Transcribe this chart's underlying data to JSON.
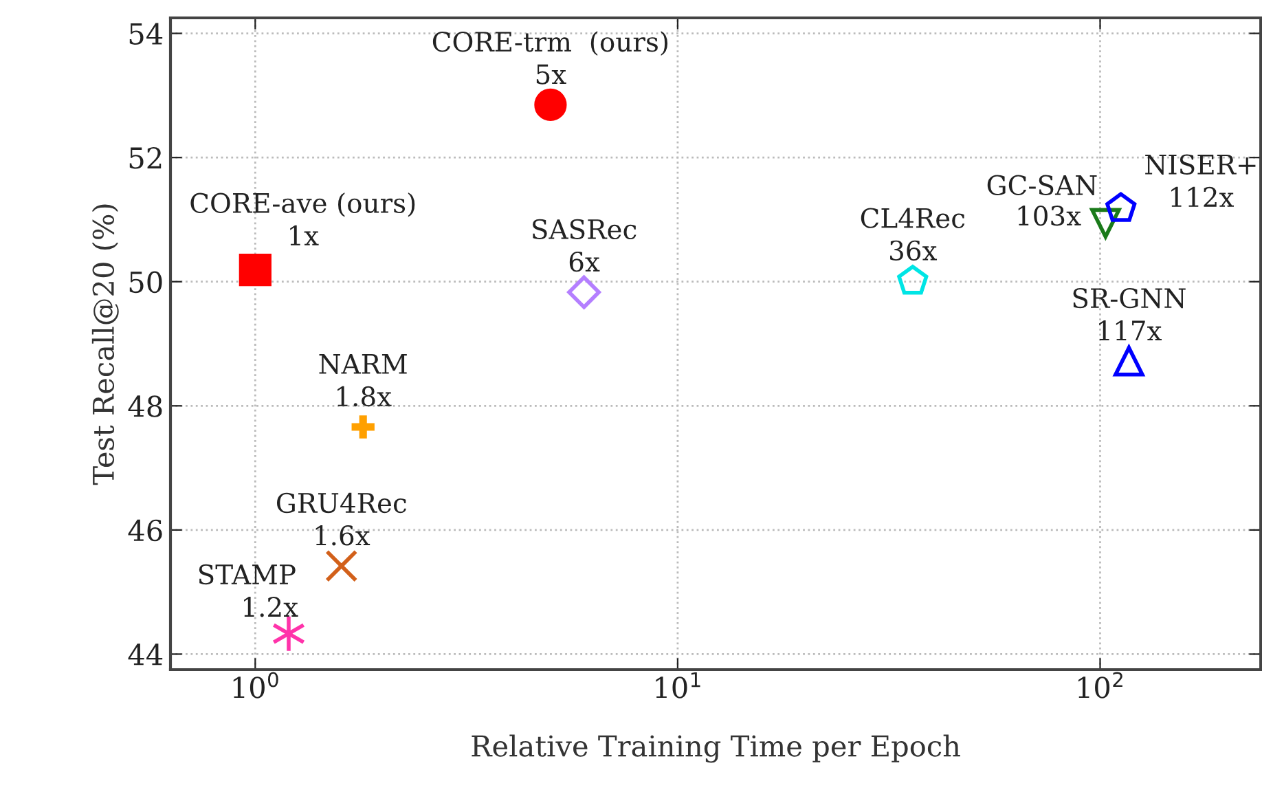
{
  "chart_data": {
    "type": "scatter",
    "xlabel": "Relative Training Time per Epoch",
    "ylabel": "Test Recall@20 (%)",
    "log": "x",
    "xlim": [
      0.63,
      240
    ],
    "xticks": [
      {
        "value": 1,
        "label": "10$^{0}$"
      },
      {
        "value": 10,
        "label": "10$^{1}$"
      },
      {
        "value": 100,
        "label": "10$^{2}$"
      }
    ],
    "ylim": [
      43.75,
      54.25
    ],
    "yticks": [
      44,
      46,
      48,
      50,
      52,
      54
    ],
    "grid": true,
    "legend": false,
    "series": [
      {
        "name": "CORE-ave (ours)",
        "color": "#ff0000",
        "marker": "square",
        "x": [
          1
        ],
        "values": [
          50.19
        ]
      },
      {
        "name": "CORE-trm  (ours)",
        "color": "#ff0000",
        "marker": "circle",
        "x": [
          5
        ],
        "values": [
          52.85
        ]
      },
      {
        "name": "SASRec",
        "color": "#b47fff",
        "marker": "diamond",
        "x": [
          6
        ],
        "values": [
          49.83
        ]
      },
      {
        "name": "NARM",
        "color": "#ffa000",
        "marker": "cross",
        "x": [
          1.8
        ],
        "values": [
          47.66
        ]
      },
      {
        "name": "GRU4Rec",
        "color": "#d2601a",
        "x": [
          1.6
        ],
        "values": [
          45.42
        ]
      },
      {
        "name": "STAMP",
        "color": "#ff33aa",
        "x": [
          1.2
        ],
        "values": [
          44.33
        ]
      },
      {
        "name": "CL4Rec",
        "color": "#00e5e5",
        "x": [
          36
        ],
        "values": [
          50.01
        ]
      },
      {
        "name": "GC-SAN",
        "color": "#1a7a1a",
        "x": [
          103
        ],
        "values": [
          50.94
        ]
      },
      {
        "name": "NISER+",
        "color": "#0000ff",
        "x": [
          112
        ],
        "values": [
          51.18
        ]
      },
      {
        "name": "SR-GNN",
        "color": "#0000ff",
        "marker": "triangle",
        "x": [
          117
        ],
        "values": [
          48.72
        ]
      }
    ],
    "annotations": [
      {
        "text": "1x",
        "x": 1,
        "y": 50.19
      },
      {
        "text": "5x",
        "x": 5,
        "y": 52.85
      },
      {
        "text": "6x",
        "x": 6,
        "y": 49.83
      },
      {
        "text": "1.8x",
        "x": 1.8,
        "y": 47.66
      },
      {
        "text": "1.6x",
        "x": 1.6,
        "y": 45.42
      },
      {
        "text": "1.2x",
        "x": 1.2,
        "y": 44.33
      },
      {
        "text": "36x",
        "x": 36,
        "y": 50.01
      },
      {
        "text": "103x",
        "x": 103,
        "y": 50.94
      },
      {
        "text": "112x",
        "x": 112,
        "y": 51.18
      },
      {
        "text": "117x",
        "x": 117,
        "y": 48.72
      }
    ]
  }
}
